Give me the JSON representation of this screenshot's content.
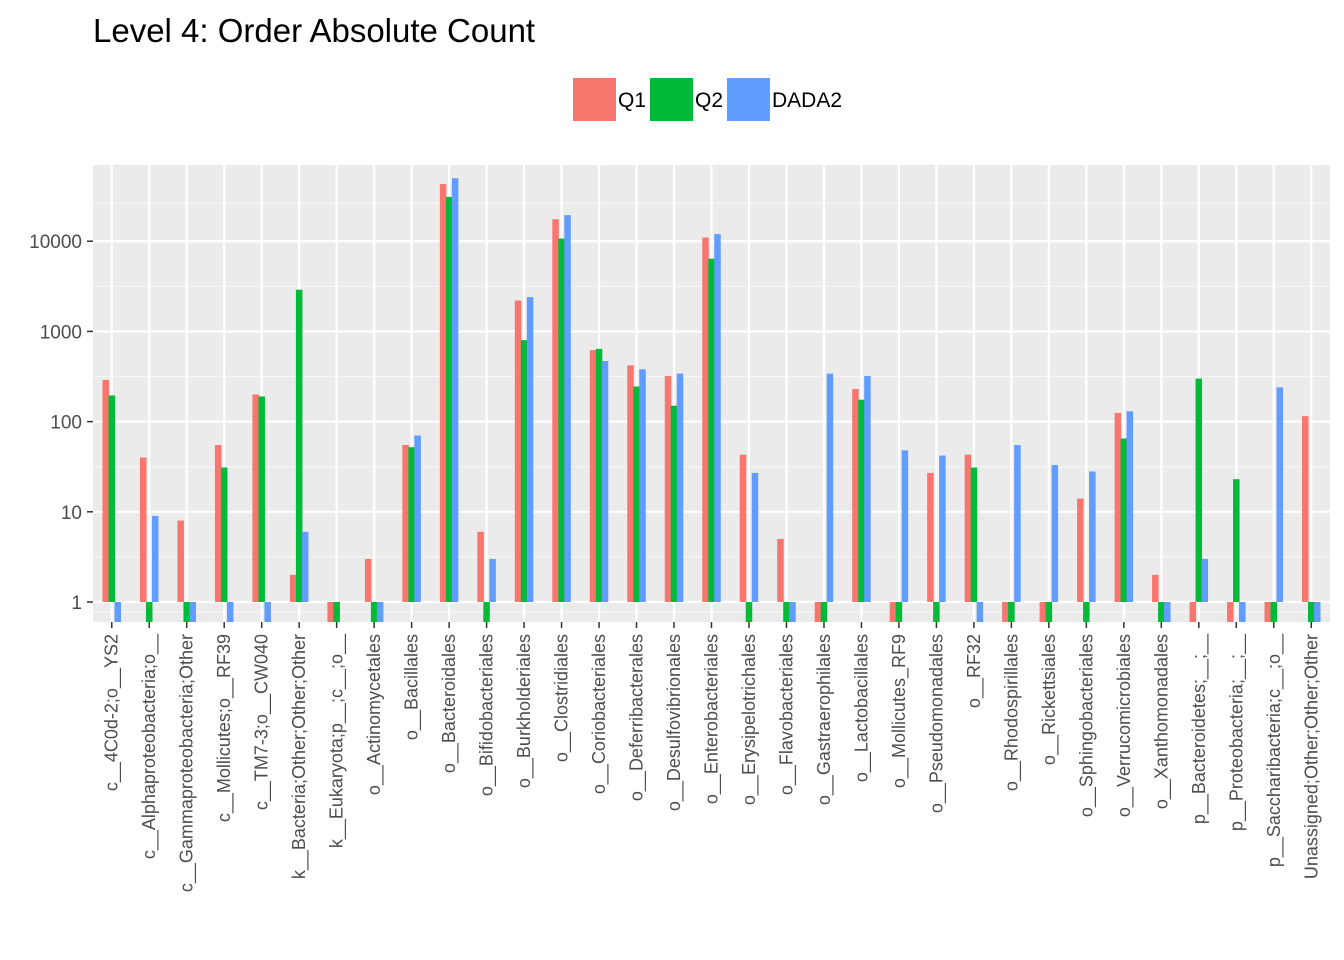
{
  "chart_data": {
    "type": "bar",
    "title": "Level 4: Order Absolute Count",
    "xlabel": "",
    "ylabel": "",
    "yscale": "log10",
    "ylim": [
      0.6,
      70000
    ],
    "yticks": [
      1,
      10,
      100,
      1000,
      10000
    ],
    "ytick_labels": [
      "1",
      "10",
      "100",
      "1000",
      "10000"
    ],
    "grid": true,
    "legend_position": "top",
    "colors": {
      "Q1": "#F8766D",
      "Q2": "#00BA38",
      "DADA2": "#619CFF"
    },
    "categories": [
      "c__4C0d-2;o__YS2",
      "c__Alphaproteobacteria;o__",
      "c__Gammaproteobacteria;Other",
      "c__Mollicutes;o__RF39",
      "c__TM7-3;o__CW040",
      "k__Bacteria;Other;Other;Other",
      "k__Eukaryota;p__;c__;o__",
      "o__Actinomycetales",
      "o__Bacillales",
      "o__Bacteroidales",
      "o__Bifidobacteriales",
      "o__Burkholderiales",
      "o__Clostridiales",
      "o__Coriobacteriales",
      "o__Deferribacterales",
      "o__Desulfovibrionales",
      "o__Enterobacteriales",
      "o__Erysipelotrichales",
      "o__Flavobacteriales",
      "o__Gastraerophilales",
      "o__Lactobacillales",
      "o__Mollicutes_RF9",
      "o__Pseudomonadales",
      "o__RF32",
      "o__Rhodospirillales",
      "o__Rickettsiales",
      "o__Sphingobacteriales",
      "o__Verrucomicrobiales",
      "o__Xanthomonadales",
      "p__Bacteroidetes;__;__",
      "p__Proteobacteria;__;__",
      "p__Saccharibacteria;c__;o__",
      "Unassigned;Other;Other;Other"
    ],
    "series": [
      {
        "name": "Q1",
        "values": [
          290,
          40,
          8,
          55,
          200,
          2,
          0,
          3,
          55,
          43000,
          6,
          2200,
          17500,
          620,
          420,
          320,
          11000,
          43,
          5,
          0,
          230,
          0,
          27,
          43,
          0,
          0,
          14,
          125,
          2,
          0,
          0,
          0,
          115
        ]
      },
      {
        "name": "Q2",
        "values": [
          195,
          0,
          0,
          31,
          190,
          2900,
          0,
          0,
          52,
          31000,
          0,
          800,
          10700,
          640,
          245,
          150,
          6400,
          0,
          0,
          0,
          175,
          0,
          0,
          31,
          0,
          0,
          0,
          65,
          0,
          300,
          23,
          0,
          0
        ]
      },
      {
        "name": "DADA2",
        "values": [
          0,
          9,
          0,
          0,
          0,
          6,
          null,
          0,
          70,
          50000,
          3,
          2400,
          19500,
          470,
          380,
          340,
          12000,
          27,
          0,
          340,
          320,
          48,
          42,
          0,
          55,
          33,
          28,
          130,
          0,
          3,
          0,
          240,
          0
        ]
      }
    ]
  }
}
